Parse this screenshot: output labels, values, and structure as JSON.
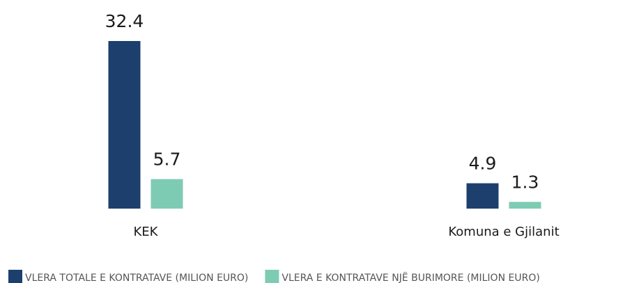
{
  "chart_data": {
    "type": "bar",
    "categories": [
      "KEK",
      "Komuna e Gjilanit"
    ],
    "series": [
      {
        "name": "VLERA TOTALE E KONTRATAVE (MILION EURO)",
        "color": "#1c3f6e",
        "values": [
          32.4,
          4.9
        ]
      },
      {
        "name": "VLERA E KONTRATAVE NJË BURIMORE (MILION EURO)",
        "color": "#7ecbb3",
        "values": [
          5.7,
          1.3
        ]
      }
    ],
    "legend": "bottom-left"
  }
}
